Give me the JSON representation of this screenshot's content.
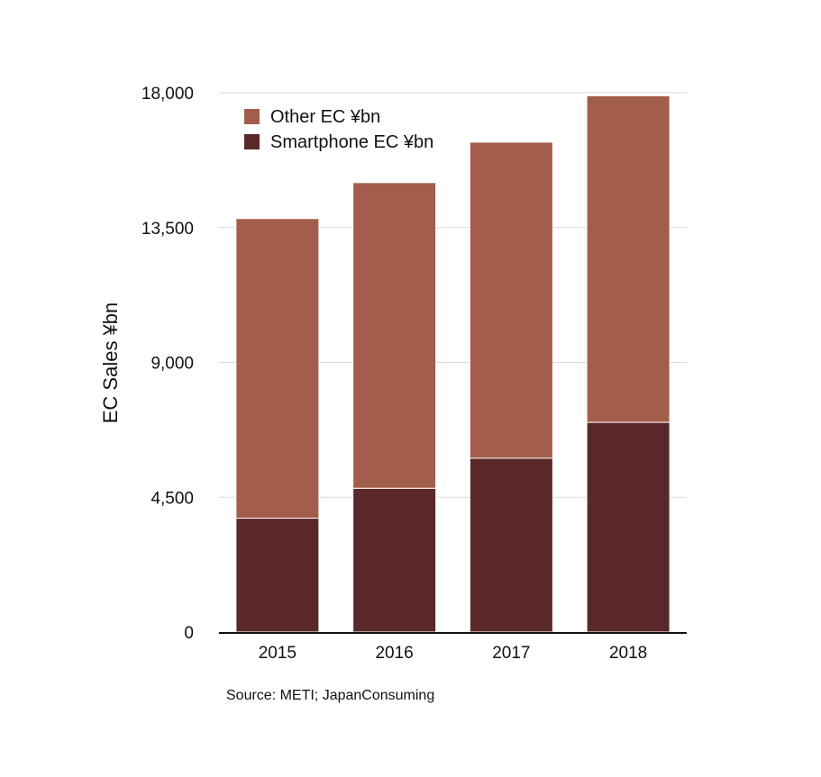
{
  "chart_data": {
    "type": "bar",
    "stacked": true,
    "categories": [
      "2015",
      "2016",
      "2017",
      "2018"
    ],
    "series": [
      {
        "name": "Smartphone EC ¥bn",
        "color": "#5a2828",
        "values": [
          3800,
          4800,
          5800,
          7000
        ]
      },
      {
        "name": "Other EC ¥bn",
        "color": "#a35d4b",
        "values": [
          10000,
          10200,
          10550,
          10900
        ]
      }
    ],
    "ylabel": "EC Sales ¥bn",
    "ylim": [
      0,
      18000
    ],
    "yticks": [
      0,
      4500,
      9000,
      13500,
      18000
    ],
    "ytick_labels": [
      "0",
      "4,500",
      "9,000",
      "13,500",
      "18,000"
    ],
    "grid": true,
    "legend_position": "top-left"
  },
  "source_text": "Source: METI; JapanConsuming"
}
